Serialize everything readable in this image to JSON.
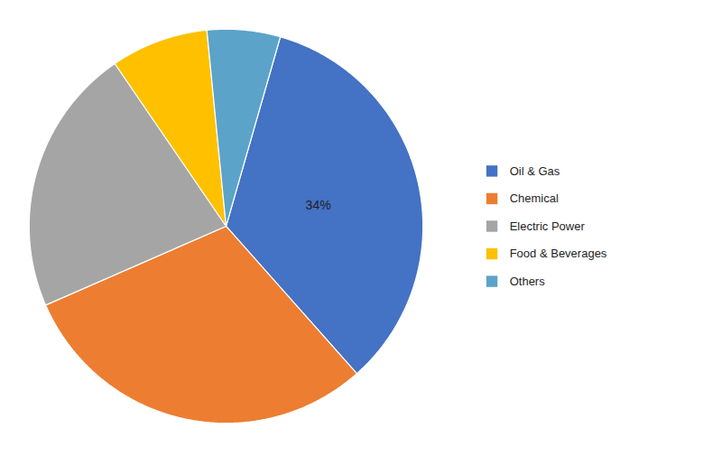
{
  "chart_data": {
    "type": "pie",
    "categories": [
      "Oil & Gas",
      "Chemical",
      "Electric Power",
      "Food & Beverages",
      "Others"
    ],
    "values": [
      34,
      30,
      22,
      8,
      6
    ],
    "value_labels": [
      "34%",
      null,
      null,
      null,
      null
    ],
    "colors": [
      "#4472C4",
      "#ED7D31",
      "#A5A5A5",
      "#FFC000",
      "#5BA3C9"
    ],
    "legend": "right"
  }
}
